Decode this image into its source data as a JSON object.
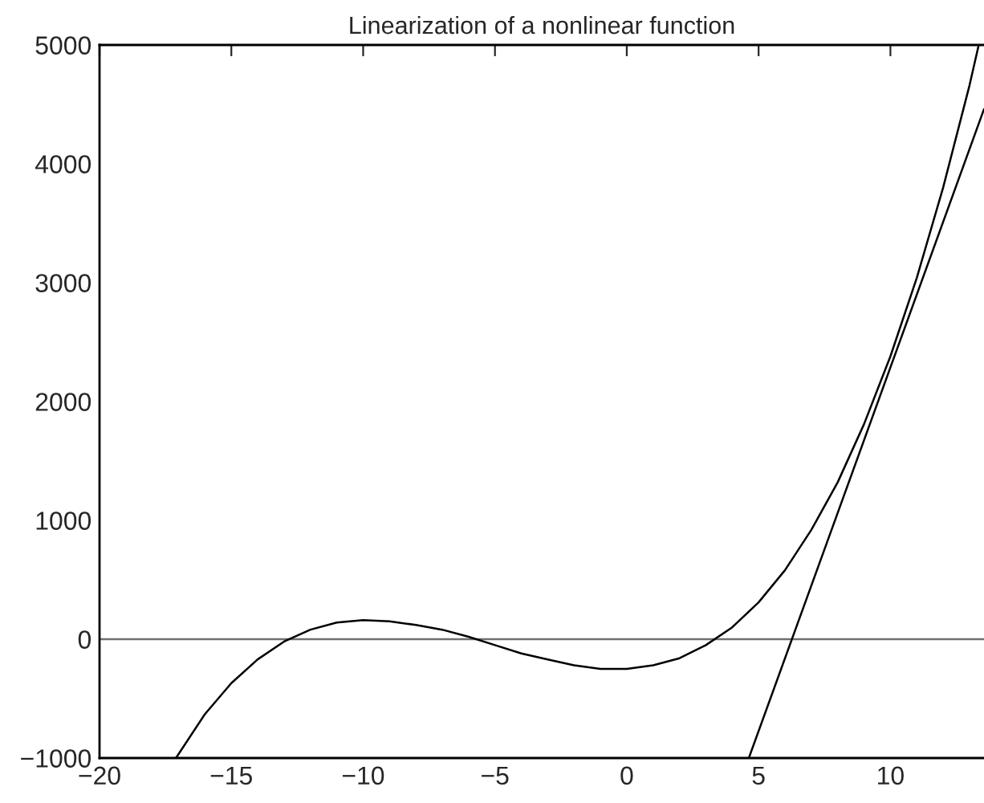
{
  "chart_data": {
    "type": "line",
    "title": "Linearization of a nonlinear function",
    "series": [
      {
        "color": "#000000",
        "x": [
          -17.1,
          -16,
          -15,
          -14,
          -13,
          -12,
          -11,
          -10,
          -9,
          -8,
          -7,
          -6,
          -5,
          -4,
          -3,
          -2,
          -1,
          0,
          1,
          2,
          3,
          4,
          5,
          6,
          7,
          8,
          9,
          10,
          11,
          12,
          13,
          13.35
        ],
        "values": [
          -1000,
          -630,
          -370,
          -170,
          -20,
          80,
          140,
          160,
          150,
          120,
          80,
          20,
          -50,
          -120,
          -170,
          -220,
          -250,
          -250,
          -220,
          -160,
          -50,
          100,
          310,
          580,
          920,
          1320,
          1810,
          2380,
          3040,
          3800,
          4660,
          5000
        ]
      },
      {
        "color": "#000000",
        "x": [
          4.63,
          13.55
        ],
        "values": [
          -1000,
          4460
        ]
      }
    ],
    "ref_lines": [
      {
        "axis": "y",
        "value": 0,
        "color": "#707070"
      }
    ],
    "xlim": [
      -20,
      13.55
    ],
    "xticks": [
      -20,
      -15,
      -10,
      -5,
      0,
      5,
      10
    ],
    "ylim": [
      -1000,
      5000
    ],
    "yticks": [
      -1000,
      0,
      1000,
      2000,
      3000,
      4000,
      5000
    ],
    "grid": false,
    "legend": false
  }
}
